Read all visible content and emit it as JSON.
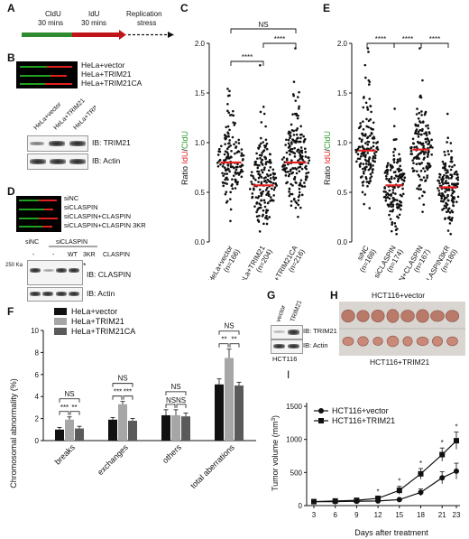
{
  "panels": {
    "A": "A",
    "B": "B",
    "C": "C",
    "D": "D",
    "E": "E",
    "F": "F",
    "G": "G",
    "H": "H",
    "I": "I"
  },
  "panel_A": {
    "segments": [
      "CldU",
      "IdU",
      "Replication"
    ],
    "durations": [
      "30 mins",
      "30 mins",
      "stress"
    ],
    "colors": {
      "cldu": "#2e8b2e",
      "idu": "#c0141a"
    }
  },
  "panel_B": {
    "fiber_labels": [
      "HeLa+vector",
      "HeLa+TRIM21",
      "HeLa+TRIM21CA"
    ],
    "lane_labels": [
      "HeLa+vector",
      "HeLa+TRIM21",
      "HeLa+TRIM21CA"
    ],
    "ib_labels": [
      "IB: TRIM21",
      "IB: Actin"
    ]
  },
  "panel_D": {
    "fiber_labels": [
      "siNC",
      "siCLASPIN",
      "siCLASPIN+CLASPIN",
      "siCLASPIN+CLASPIN 3KR"
    ],
    "top_labels": [
      "siNC",
      "siCLASPIN"
    ],
    "lane_labels": [
      "-",
      "-",
      "WT",
      "3KR",
      "CLASPIN"
    ],
    "marker": "250 Ka",
    "asterisk": "*",
    "ib_labels": [
      "IB: CLASPIN",
      "IB: Actin"
    ]
  },
  "panel_G": {
    "lane_labels": [
      "vector",
      "TRIM21"
    ],
    "ib_labels": [
      "IB: TRIM21",
      "IB: Actin"
    ],
    "cell_line": "HCT116"
  },
  "panel_H": {
    "top_label": "HCT116+vector",
    "bottom_label": "HCT116+TRIM21"
  },
  "colors": {
    "red_line": "#e32020",
    "idu": "#e32020",
    "cldu": "#2ca02c",
    "bar1": "#111111",
    "bar2": "#a6a6a6",
    "bar3": "#5a5a5a"
  },
  "chart_data": [
    {
      "id": "C",
      "type": "scatter",
      "ylabel_parts": [
        "Ratio ",
        "IdU",
        "/",
        "CldU"
      ],
      "ylim": [
        0,
        2.0
      ],
      "yticks": [
        "0.0",
        "0.5",
        "1.0",
        "1.5",
        "2.0"
      ],
      "groups": [
        {
          "name": "HeLa+vector",
          "n": "(n=166)",
          "median": 0.8
        },
        {
          "name": "HeLa+TRIM21",
          "n": "(n=204)",
          "median": 0.57
        },
        {
          "name": "HeLa+TRIM21CA",
          "n": "(n=216)",
          "median": 0.8
        }
      ],
      "significance": [
        {
          "label": "NS",
          "from": 0,
          "to": 2
        },
        {
          "label": "****",
          "from": 0,
          "to": 1
        },
        {
          "label": "****",
          "from": 1,
          "to": 2
        }
      ]
    },
    {
      "id": "E",
      "type": "scatter",
      "ylabel_parts": [
        "Ratio ",
        "IdU",
        "/",
        "CldU"
      ],
      "ylim": [
        0,
        2.0
      ],
      "yticks": [
        "0.0",
        "0.5",
        "1.0",
        "1.5",
        "2.0"
      ],
      "groups": [
        {
          "name": "siNC",
          "n": "(n=168)",
          "median": 0.92
        },
        {
          "name": "siCLASPIN",
          "n": "(n=174)",
          "median": 0.57
        },
        {
          "name": "siCLASPIN+CLASPIN",
          "n": "(n=167)",
          "median": 0.93
        },
        {
          "name": "siCLASPIN+CLASPIN3KR",
          "n": "(n=180)",
          "median": 0.55
        }
      ],
      "significance": [
        {
          "label": "****",
          "from": 0,
          "to": 1
        },
        {
          "label": "****",
          "from": 1,
          "to": 2
        },
        {
          "label": "****",
          "from": 2,
          "to": 3
        }
      ]
    },
    {
      "id": "F",
      "type": "bar",
      "ylabel": "Chromosomal abnormality (%)",
      "ylim": [
        0,
        10
      ],
      "yticks": [
        "0",
        "2",
        "4",
        "6",
        "8",
        "10"
      ],
      "categories": [
        "breaks",
        "exchanges",
        "others",
        "total aberrations"
      ],
      "series": [
        {
          "name": "HeLa+vector",
          "values": [
            1.0,
            1.9,
            2.3,
            5.1
          ],
          "errors": [
            0.2,
            0.2,
            0.5,
            0.5
          ]
        },
        {
          "name": "HeLa+TRIM21",
          "values": [
            1.9,
            3.3,
            2.3,
            7.5
          ],
          "errors": [
            0.25,
            0.25,
            0.5,
            0.8
          ]
        },
        {
          "name": "HeLa+TRIM21CA",
          "values": [
            1.1,
            1.8,
            2.2,
            5.0
          ],
          "errors": [
            0.2,
            0.2,
            0.3,
            0.3
          ]
        }
      ],
      "significance": [
        {
          "cat": 0,
          "top": "NS",
          "left": "***",
          "right": "**"
        },
        {
          "cat": 1,
          "top": "NS",
          "left": "***",
          "right": "***"
        },
        {
          "cat": 2,
          "top": "NS",
          "left": "NS",
          "right": "NS"
        },
        {
          "cat": 3,
          "top": "NS",
          "left": "**",
          "right": "**"
        }
      ],
      "legend": "top-left"
    },
    {
      "id": "I",
      "type": "line",
      "xlabel": "Days after treatment",
      "ylabel_parts": [
        "Tumor volume (mm",
        "3",
        ")"
      ],
      "x": [
        3,
        6,
        9,
        12,
        15,
        18,
        21,
        23
      ],
      "ylim": [
        0,
        1500
      ],
      "yticks": [
        "0",
        "500",
        "1000",
        "1500"
      ],
      "series": [
        {
          "name": "HCT116+vector",
          "values": [
            60,
            60,
            65,
            70,
            90,
            200,
            420,
            520
          ],
          "errors": [
            10,
            10,
            10,
            10,
            20,
            50,
            90,
            120
          ],
          "marker": "circle"
        },
        {
          "name": "HCT116+TRIM21",
          "values": [
            60,
            70,
            80,
            110,
            230,
            480,
            770,
            980
          ],
          "errors": [
            10,
            10,
            15,
            20,
            60,
            80,
            100,
            130
          ],
          "marker": "square"
        }
      ],
      "stars": [
        "",
        "",
        "",
        "*",
        "*",
        "*",
        "*",
        "*"
      ],
      "legend": "top-left"
    }
  ]
}
